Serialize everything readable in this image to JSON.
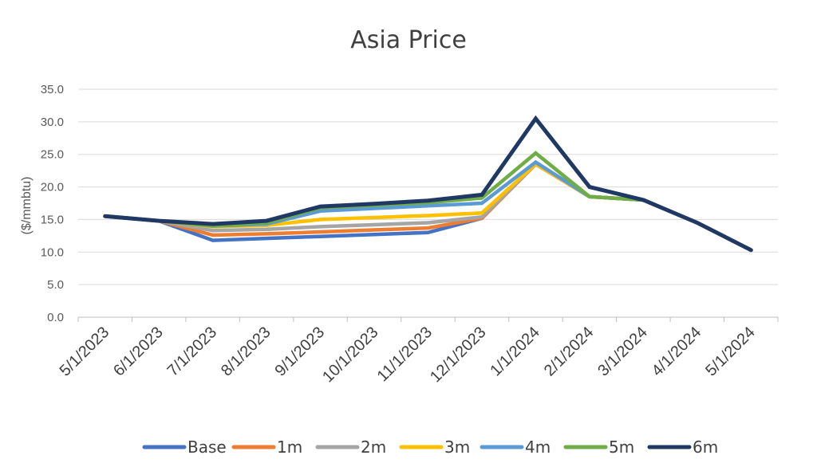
{
  "chart_data": {
    "type": "line",
    "title": "Asia Price",
    "xlabel": "",
    "ylabel": "($/mmbtu)",
    "ylim": [
      0,
      35
    ],
    "yticks": [
      "0.0",
      "5.0",
      "10.0",
      "15.0",
      "20.0",
      "25.0",
      "30.0",
      "35.0"
    ],
    "grid": true,
    "legend_position": "bottom",
    "categories": [
      "5/1/2023",
      "6/1/2023",
      "7/1/2023",
      "8/1/2023",
      "9/1/2023",
      "10/1/2023",
      "11/1/2023",
      "12/1/2023",
      "1/1/2024",
      "2/1/2024",
      "3/1/2024",
      "4/1/2024",
      "5/1/2024"
    ],
    "series": [
      {
        "name": "Base",
        "color": "#4472c4",
        "values": [
          15.5,
          14.8,
          11.8,
          12.1,
          12.4,
          12.7,
          13.0,
          15.2,
          23.5,
          18.5,
          18.0,
          14.5,
          10.3
        ]
      },
      {
        "name": "1m",
        "color": "#ed7d31",
        "values": [
          15.5,
          14.8,
          12.6,
          12.8,
          13.1,
          13.4,
          13.7,
          15.2,
          23.5,
          18.5,
          18.0,
          14.5,
          10.3
        ]
      },
      {
        "name": "2m",
        "color": "#a5a5a5",
        "values": [
          15.5,
          14.8,
          13.3,
          13.5,
          13.9,
          14.2,
          14.5,
          15.4,
          23.5,
          18.5,
          18.0,
          14.5,
          10.3
        ]
      },
      {
        "name": "3m",
        "color": "#ffc000",
        "values": [
          15.5,
          14.8,
          13.9,
          14.1,
          15.0,
          15.3,
          15.6,
          16.0,
          23.5,
          18.5,
          18.0,
          14.5,
          10.3
        ]
      },
      {
        "name": "4m",
        "color": "#5b9bd5",
        "values": [
          15.5,
          14.8,
          14.0,
          14.3,
          16.3,
          16.7,
          17.1,
          17.5,
          23.8,
          18.5,
          18.0,
          14.5,
          10.3
        ]
      },
      {
        "name": "5m",
        "color": "#70ad47",
        "values": [
          15.5,
          14.8,
          14.0,
          14.5,
          16.8,
          17.2,
          17.6,
          18.3,
          25.2,
          18.5,
          18.0,
          14.5,
          10.3
        ]
      },
      {
        "name": "6m",
        "color": "#203864",
        "values": [
          15.5,
          14.8,
          14.3,
          14.8,
          17.0,
          17.4,
          17.9,
          18.8,
          30.5,
          20.0,
          18.0,
          14.5,
          10.3
        ]
      }
    ]
  }
}
